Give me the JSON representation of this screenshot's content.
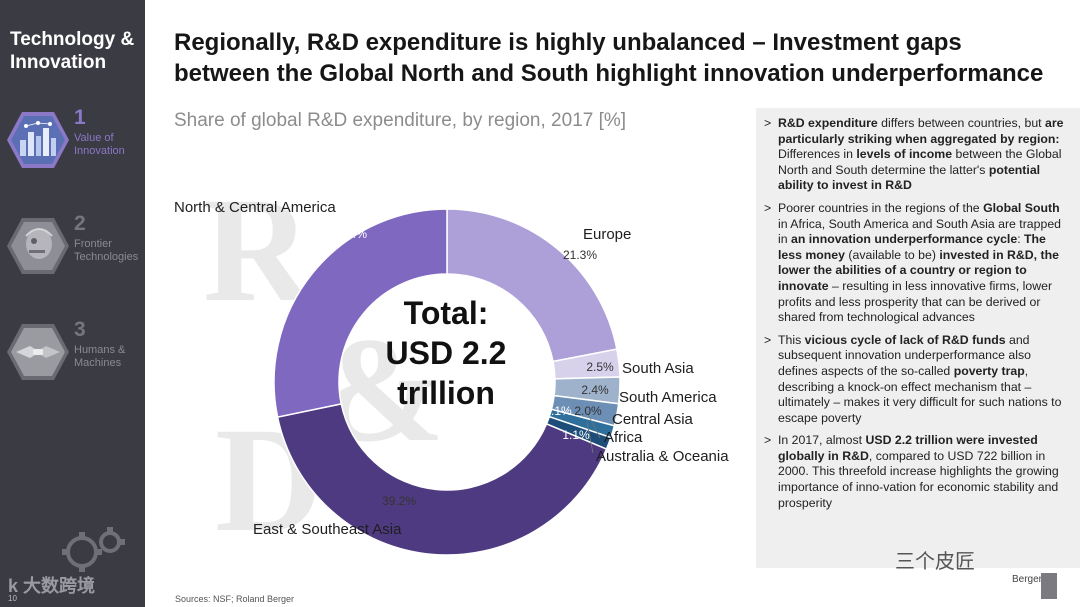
{
  "sidebar": {
    "brand_line1": "Technology &",
    "brand_line2": "Innovation",
    "items": [
      {
        "num": "1",
        "line1": "Value of",
        "line2": "Innovation",
        "icon": "city-network-icon",
        "active": true
      },
      {
        "num": "2",
        "line1": "Frontier",
        "line2": "Technologies",
        "icon": "robot-head-icon",
        "active": false
      },
      {
        "num": "3",
        "line1": "Humans &",
        "line2": "Machines",
        "icon": "handshake-icon",
        "active": false
      }
    ],
    "watermark_text": "大数跨境",
    "watermark_prefix": "k",
    "page_number": "10"
  },
  "header": {
    "title_line1": "Regionally, R&D expenditure is highly unbalanced – Investment gaps",
    "title_line2": "between the Global North and South highlight innovation underperformance"
  },
  "chart_subtitle": "Share of global R&D expenditure, by region, 2017 [%]",
  "total": {
    "line1": "Total:",
    "line2": "USD 2.2",
    "line3": "trillion"
  },
  "chart_data": {
    "type": "pie",
    "donut": true,
    "title": "Share of global R&D expenditure, by region, 2017 [%]",
    "center_label": "Total: USD 2.2 trillion",
    "slices": [
      {
        "label": "Europe",
        "value": 21.3,
        "display": "21.3%",
        "color": "#ad9fd8"
      },
      {
        "label": "South Asia",
        "value": 2.5,
        "display": "2.5%",
        "color": "#d8d1ec"
      },
      {
        "label": "South America",
        "value": 2.4,
        "display": "2.4%",
        "color": "#9fb2cc"
      },
      {
        "label": "Central Asia",
        "value": 2.0,
        "display": "2.0%",
        "color": "#6d8fb5"
      },
      {
        "label": "Africa",
        "value": 1.1,
        "display": "1.1%",
        "color": "#2f6f9c"
      },
      {
        "label": "Australia & Oceania",
        "value": 1.1,
        "display": "1.1%",
        "color": "#1c4e79"
      },
      {
        "label": "East & Southeast Asia",
        "value": 39.2,
        "display": "39.2%",
        "color": "#4e3a80"
      },
      {
        "label": "North & Central America",
        "value": 27.4,
        "display": "27.4%",
        "color": "#7f68bf"
      }
    ]
  },
  "panel": {
    "bullet_marker": ">",
    "b1": {
      "t1": "R&D expenditure",
      "t2": " differs between countries, but ",
      "t3": "are particularly striking when aggregated by region:",
      "t4": " Differences in ",
      "t5": "levels of income",
      "t6": " between the Global North and South determine the latter's ",
      "t7": "potential ability to invest in R&D"
    },
    "b2": {
      "t1": "Poorer countries in the regions of the ",
      "t2": "Global South",
      "t3": " in Africa, South America and South Asia are trapped in ",
      "t4": "an innovation underperformance cycle",
      "t5": ": ",
      "t6": "The less money",
      "t7": " (available to be) ",
      "t8": "invested in R&D, the lower the abilities of a country or region to innovate",
      "t9": " – resulting in less innovative firms, lower profits and less prosperity that can be derived or shared from technological advances"
    },
    "b3": {
      "t1": "This ",
      "t2": "vicious cycle of lack of R&D funds",
      "t3": " and subsequent innovation underperformance also defines aspects of the so-called ",
      "t4": "poverty trap",
      "t5": ", describing a knock-on effect mechanism that – ultimately – makes it very difficult for such nations to escape poverty"
    },
    "b4": {
      "t1": "In 2017, almost ",
      "t2": "USD 2.2 trillion were invested globally in R&D",
      "t3": ", compared to USD 722 billion in 2000. This threefold increase highlights the growing importance of inno-vation for economic stability and prosperity"
    }
  },
  "sources": "Sources: NSF; Roland Berger",
  "bottom_watermark": "三个皮匠",
  "logo_text": "Berger",
  "colors": {
    "sidebar_bg": "#3b3b43",
    "accent_purple": "#8b78c6",
    "panel_bg": "#efeff0"
  }
}
